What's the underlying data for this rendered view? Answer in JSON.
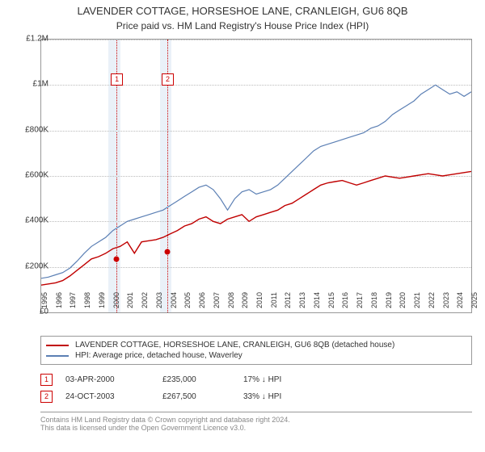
{
  "title": "LAVENDER COTTAGE, HORSESHOE LANE, CRANLEIGH, GU6 8QB",
  "subtitle": "Price paid vs. HM Land Registry's House Price Index (HPI)",
  "chart": {
    "type": "line",
    "ylim": [
      0,
      1200000
    ],
    "ytick_step": 200000,
    "yticks": [
      "£0",
      "£200K",
      "£400K",
      "£600K",
      "£800K",
      "£1M",
      "£1.2M"
    ],
    "x_start_year": 1995,
    "x_end_year": 2025,
    "background_color": "#ffffff",
    "grid_color": "#bbbbbb",
    "border_color": "#999999",
    "shaded_bands": [
      {
        "from": 1999.7,
        "to": 2000.5,
        "color": "#eaf1f8"
      },
      {
        "from": 2003.3,
        "to": 2004.1,
        "color": "#eaf1f8"
      }
    ],
    "sale_markers": [
      {
        "label": "1",
        "year": 2000.25,
        "price": 235000
      },
      {
        "label": "2",
        "year": 2003.8,
        "price": 267500
      }
    ],
    "series": [
      {
        "name": "LAVENDER COTTAGE, HORSESHOE LANE, CRANLEIGH, GU6 8QB (detached house)",
        "color": "#c00000",
        "line_width": 1.4,
        "y": [
          120000,
          125000,
          130000,
          140000,
          160000,
          185000,
          210000,
          235000,
          245000,
          260000,
          280000,
          290000,
          310000,
          260000,
          310000,
          315000,
          320000,
          330000,
          345000,
          360000,
          380000,
          390000,
          410000,
          420000,
          400000,
          390000,
          410000,
          420000,
          430000,
          400000,
          420000,
          430000,
          440000,
          450000,
          470000,
          480000,
          500000,
          520000,
          540000,
          560000,
          570000,
          575000,
          580000,
          570000,
          560000,
          570000,
          580000,
          590000,
          600000,
          595000,
          590000,
          595000,
          600000,
          605000,
          610000,
          605000,
          600000,
          605000,
          610000,
          615000,
          620000
        ]
      },
      {
        "name": "HPI: Average price, detached house, Waverley",
        "color": "#5b7fb4",
        "line_width": 1.2,
        "y": [
          150000,
          155000,
          165000,
          175000,
          195000,
          225000,
          260000,
          290000,
          310000,
          330000,
          360000,
          380000,
          400000,
          410000,
          420000,
          430000,
          440000,
          450000,
          470000,
          490000,
          510000,
          530000,
          550000,
          560000,
          540000,
          500000,
          450000,
          500000,
          530000,
          540000,
          520000,
          530000,
          540000,
          560000,
          590000,
          620000,
          650000,
          680000,
          710000,
          730000,
          740000,
          750000,
          760000,
          770000,
          780000,
          790000,
          810000,
          820000,
          840000,
          870000,
          890000,
          910000,
          930000,
          960000,
          980000,
          1000000,
          980000,
          960000,
          970000,
          950000,
          970000
        ]
      }
    ]
  },
  "legend": {
    "items": [
      {
        "color": "#c00000",
        "label": "LAVENDER COTTAGE, HORSESHOE LANE, CRANLEIGH, GU6 8QB (detached house)"
      },
      {
        "color": "#5b7fb4",
        "label": "HPI: Average price, detached house, Waverley"
      }
    ]
  },
  "sales": [
    {
      "marker": "1",
      "date": "03-APR-2000",
      "price": "£235,000",
      "hpi": "17% ↓ HPI"
    },
    {
      "marker": "2",
      "date": "24-OCT-2003",
      "price": "£267,500",
      "hpi": "33% ↓ HPI"
    }
  ],
  "footer": {
    "line1": "Contains HM Land Registry data © Crown copyright and database right 2024.",
    "line2": "This data is licensed under the Open Government Licence v3.0."
  }
}
